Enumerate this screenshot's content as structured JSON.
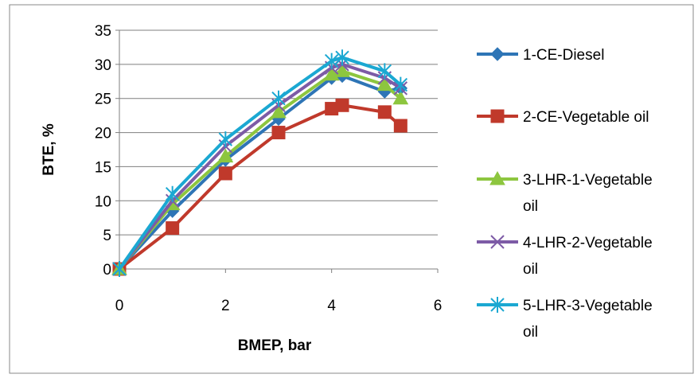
{
  "chart_data": {
    "type": "line",
    "xlabel": "BMEP, bar",
    "ylabel": "BTE, %",
    "xlim": [
      0,
      6
    ],
    "ylim": [
      0,
      35
    ],
    "xticks": [
      0,
      2,
      4,
      6
    ],
    "yticks": [
      0,
      5,
      10,
      15,
      20,
      25,
      30,
      35
    ],
    "grid": "horizontal",
    "legend": "right",
    "series": [
      {
        "name": "1-CE-Diesel",
        "color": "#2E75B6",
        "marker": "diamond",
        "x": [
          0,
          1,
          2,
          3,
          4,
          4.2,
          5,
          5.3
        ],
        "y": [
          0,
          8.5,
          16,
          22,
          28,
          28.3,
          26,
          26.5
        ]
      },
      {
        "name": "2-CE-Vegetable oil",
        "color": "#C0392B",
        "marker": "square",
        "x": [
          0,
          1,
          2,
          3,
          4,
          4.2,
          5,
          5.3
        ],
        "y": [
          0,
          6,
          14,
          20,
          23.5,
          24,
          23,
          21
        ]
      },
      {
        "name": "3-LHR-1-Vegetable oil",
        "color": "#8DC63F",
        "marker": "triangle",
        "x": [
          0,
          1,
          2,
          3,
          4,
          4.2,
          5,
          5.3
        ],
        "y": [
          0,
          9.5,
          16.5,
          23,
          28.5,
          29,
          27,
          25
        ]
      },
      {
        "name": "4-LHR-2-Vegetable oil",
        "color": "#7D5BA6",
        "marker": "x",
        "x": [
          0,
          1,
          2,
          3,
          4,
          4.2,
          5,
          5.3
        ],
        "y": [
          0,
          10,
          18,
          24,
          29.5,
          30,
          28,
          26.5
        ]
      },
      {
        "name": "5-LHR-3-Vegetable oil",
        "color": "#1BA8D2",
        "marker": "star",
        "x": [
          0,
          1,
          2,
          3,
          4,
          4.2,
          5,
          5.3
        ],
        "y": [
          0,
          11,
          19,
          25,
          30.5,
          31,
          29,
          27
        ]
      }
    ]
  }
}
